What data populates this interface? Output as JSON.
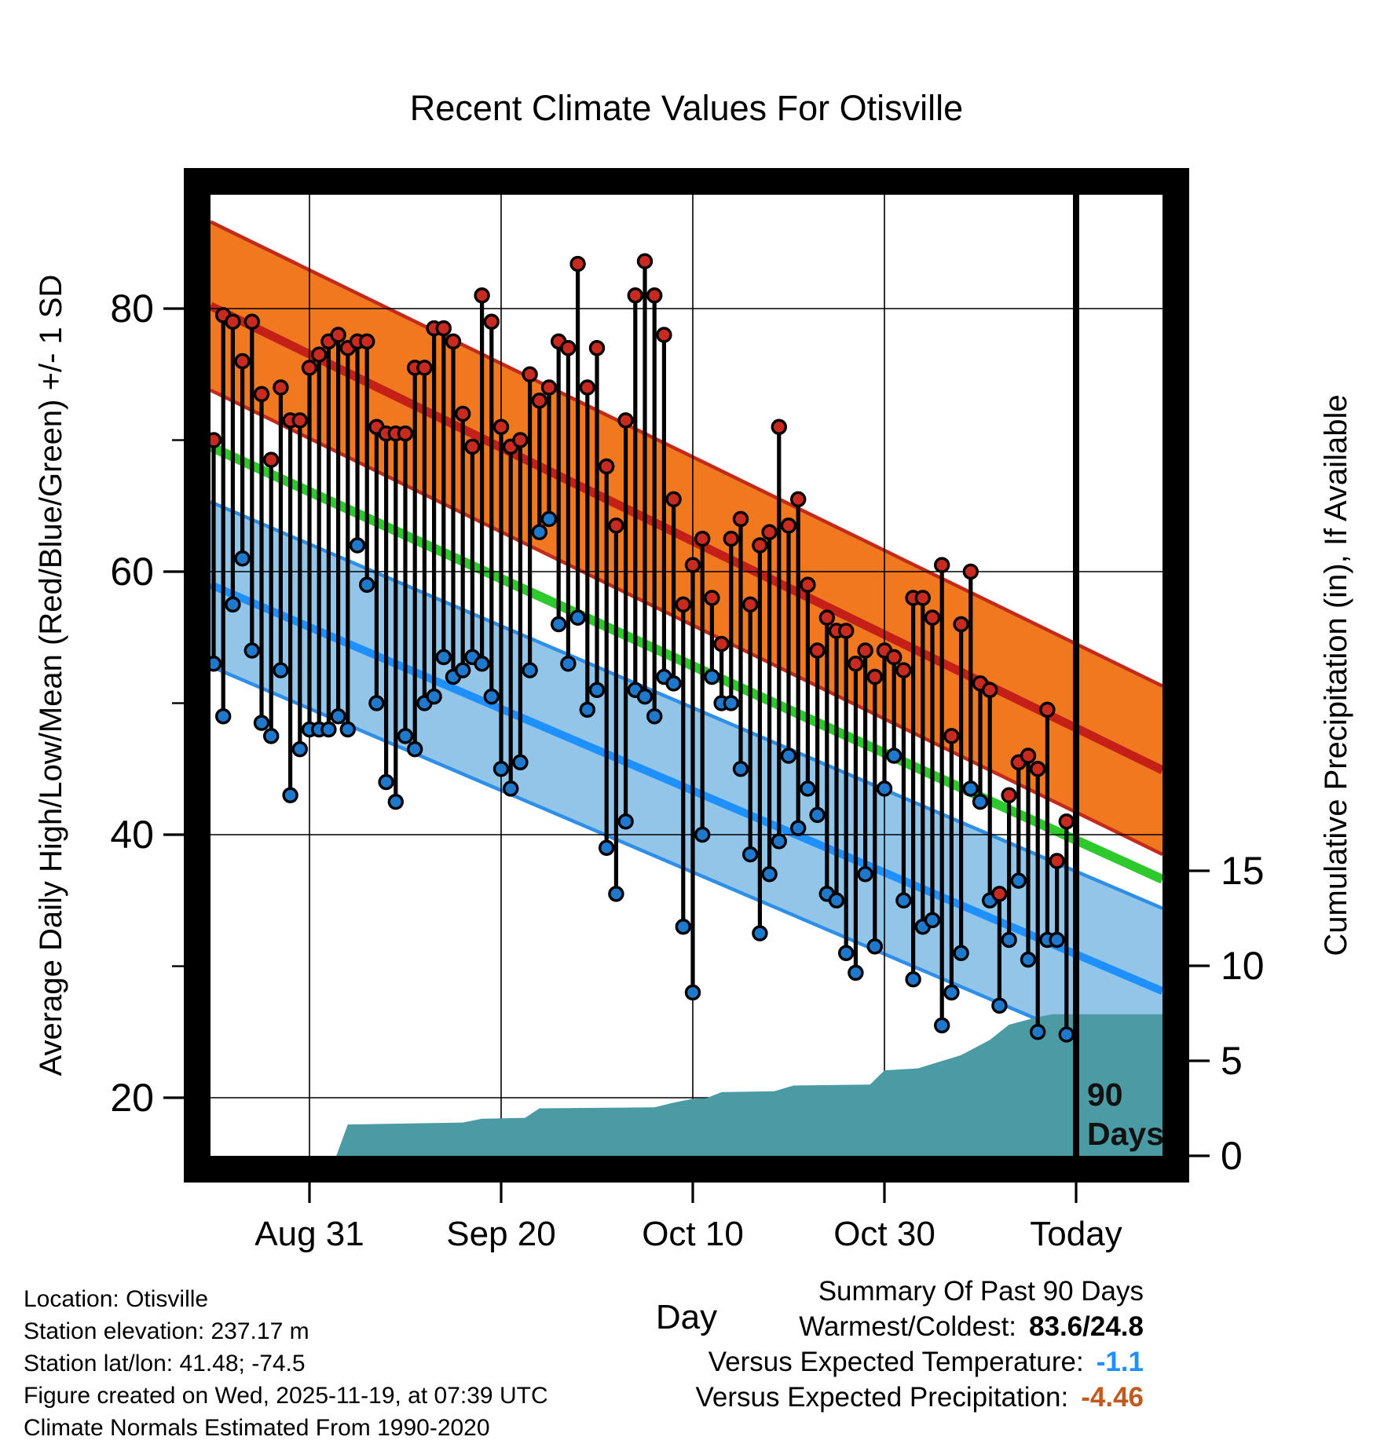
{
  "title": "Recent Climate Values For Otisville",
  "footer": {
    "lines": [
      "Location: Otisville",
      "Station elevation: 237.17 m",
      "Station lat/lon: 41.48; -74.5",
      "Figure created on Wed, 2025-11-19, at 07:39 UTC",
      "Climate Normals Estimated From 1990-2020"
    ]
  },
  "summary": {
    "heading": "Summary Of Past 90 Days",
    "rows": [
      {
        "label": "Warmest/Coldest:",
        "value": "83.6/24.8",
        "kind": "extreme"
      },
      {
        "label": "Versus Expected Temperature:",
        "value": "-1.1",
        "kind": "temp"
      },
      {
        "label": "Versus Expected Precipitation:",
        "value": "-4.46",
        "kind": "precip"
      }
    ]
  },
  "chart_data": {
    "type": "line",
    "title": "Recent Climate Values For Otisville",
    "xlabel": "Day",
    "ylabel_left": "Average Daily High/Low/Mean (Red/Blue/Green) +/- 1 SD",
    "ylabel_right": "Cumulative Precipitation (in), If Available",
    "x_ticks": [
      "Aug 31",
      "Sep 20",
      "Oct 10",
      "Oct 30",
      "Today"
    ],
    "x_tick_days": [
      10,
      30,
      50,
      70,
      90
    ],
    "y_left_ticks": [
      20,
      40,
      60,
      80
    ],
    "y_left_minor_ticks": [
      30,
      50,
      70
    ],
    "y_right_ticks": [
      0,
      5,
      10,
      15
    ],
    "ylim_left": [
      15.5,
      88.7
    ],
    "ylim_right": [
      0,
      50.6
    ],
    "start_date": "Aug 21",
    "end_date": "Nov 18",
    "n_days": 90,
    "today_marker_day": 90,
    "annotation_90days": [
      "90",
      "Days"
    ],
    "series": [
      {
        "name": "daily_high",
        "values": [
          70,
          79.5,
          79,
          76,
          79,
          73.5,
          68.5,
          74,
          71.5,
          71.5,
          75.5,
          76.5,
          77.5,
          78,
          77,
          77.5,
          77.5,
          71,
          70.5,
          70.5,
          70.5,
          75.5,
          75.5,
          78.5,
          78.5,
          77.5,
          72,
          69.5,
          81,
          79,
          71,
          69.5,
          70,
          75,
          73,
          74,
          77.5,
          77,
          83.4,
          74,
          77,
          68,
          63.5,
          71.5,
          81,
          83.6,
          81,
          78,
          65.5,
          57.5,
          60.5,
          62.5,
          58,
          54.5,
          62.5,
          64,
          57.5,
          62,
          63,
          71,
          63.5,
          65.5,
          59,
          54,
          56.5,
          55.5,
          55.5,
          53,
          54,
          52,
          54,
          53.5,
          52.5,
          58,
          58,
          56.5,
          60.5,
          47.5,
          56,
          60,
          51.5,
          51,
          35.5,
          43,
          45.5,
          46,
          45,
          49.5,
          38,
          41
        ]
      },
      {
        "name": "daily_low",
        "values": [
          53,
          49,
          57.5,
          61,
          54,
          48.5,
          47.5,
          52.5,
          43,
          46.5,
          48,
          48,
          48,
          49,
          48,
          62,
          59,
          50,
          44,
          42.5,
          47.5,
          46.5,
          50,
          50.5,
          53.5,
          52,
          52.5,
          53.5,
          53,
          50.5,
          45,
          43.5,
          45.5,
          52.5,
          63,
          64,
          56,
          53,
          56.5,
          49.5,
          51,
          39,
          35.5,
          41,
          51,
          50.5,
          49,
          52,
          51.5,
          33,
          28,
          40,
          52,
          50,
          50,
          45,
          38.5,
          32.5,
          37,
          39.5,
          46,
          40.5,
          43.5,
          41.5,
          35.5,
          35,
          31,
          29.5,
          37,
          31.5,
          43.5,
          46,
          35,
          29,
          33,
          33.5,
          25.5,
          28,
          31,
          43.5,
          42.5,
          35,
          27,
          32,
          36.5,
          30.5,
          25,
          32,
          32,
          24.8
        ]
      },
      {
        "name": "avg_high_normal",
        "start_value": 80.2,
        "end_value": 44.9
      },
      {
        "name": "avg_high_plus_sd",
        "start_value": 86.6,
        "end_value": 51.3
      },
      {
        "name": "avg_high_minus_sd",
        "start_value": 73.8,
        "end_value": 38.5
      },
      {
        "name": "mean_normal",
        "start_value": 69.5,
        "end_value": 36.6
      },
      {
        "name": "avg_low_normal",
        "start_value": 59.0,
        "end_value": 28.1
      },
      {
        "name": "avg_low_plus_sd",
        "start_value": 65.3,
        "end_value": 34.4
      },
      {
        "name": "avg_low_minus_sd",
        "start_value": 52.8,
        "end_value": 21.9
      },
      {
        "name": "cumulative_precip_in",
        "breakpoints": [
          [
            12.8,
            0
          ],
          [
            14,
            1.65
          ],
          [
            26,
            1.75
          ],
          [
            28,
            1.95
          ],
          [
            32.5,
            2.0
          ],
          [
            34,
            2.5
          ],
          [
            46,
            2.55
          ],
          [
            48,
            2.8
          ],
          [
            50,
            3.0
          ],
          [
            51.5,
            3.05
          ],
          [
            53,
            3.35
          ],
          [
            58.5,
            3.4
          ],
          [
            60.5,
            3.7
          ],
          [
            68.5,
            3.75
          ],
          [
            70,
            4.5
          ],
          [
            73.5,
            4.6
          ],
          [
            78,
            5.3
          ],
          [
            81,
            6.1
          ],
          [
            83,
            6.9
          ],
          [
            84.5,
            7.1
          ],
          [
            86,
            7.3
          ],
          [
            87.5,
            7.45
          ],
          [
            99.5,
            7.45
          ]
        ]
      }
    ],
    "legend_position": "none",
    "grid": true
  },
  "colors": {
    "high_band_fill": "#F0781E",
    "high_band_edge": "#C42A1C",
    "avg_high_line": "#C42018",
    "mean_line": "#2DC92D",
    "low_band_fill": "#92C5E8",
    "low_band_edge": "#2D8FE8",
    "avg_low_line": "#1E90FF",
    "precip_fill": "#4A9BA3",
    "stem": "#000000",
    "high_dot": "#C82A20",
    "low_dot": "#1E78CC",
    "temp_anomaly_text": "#1E90FF",
    "precip_anomaly_text": "#C05A1E"
  }
}
